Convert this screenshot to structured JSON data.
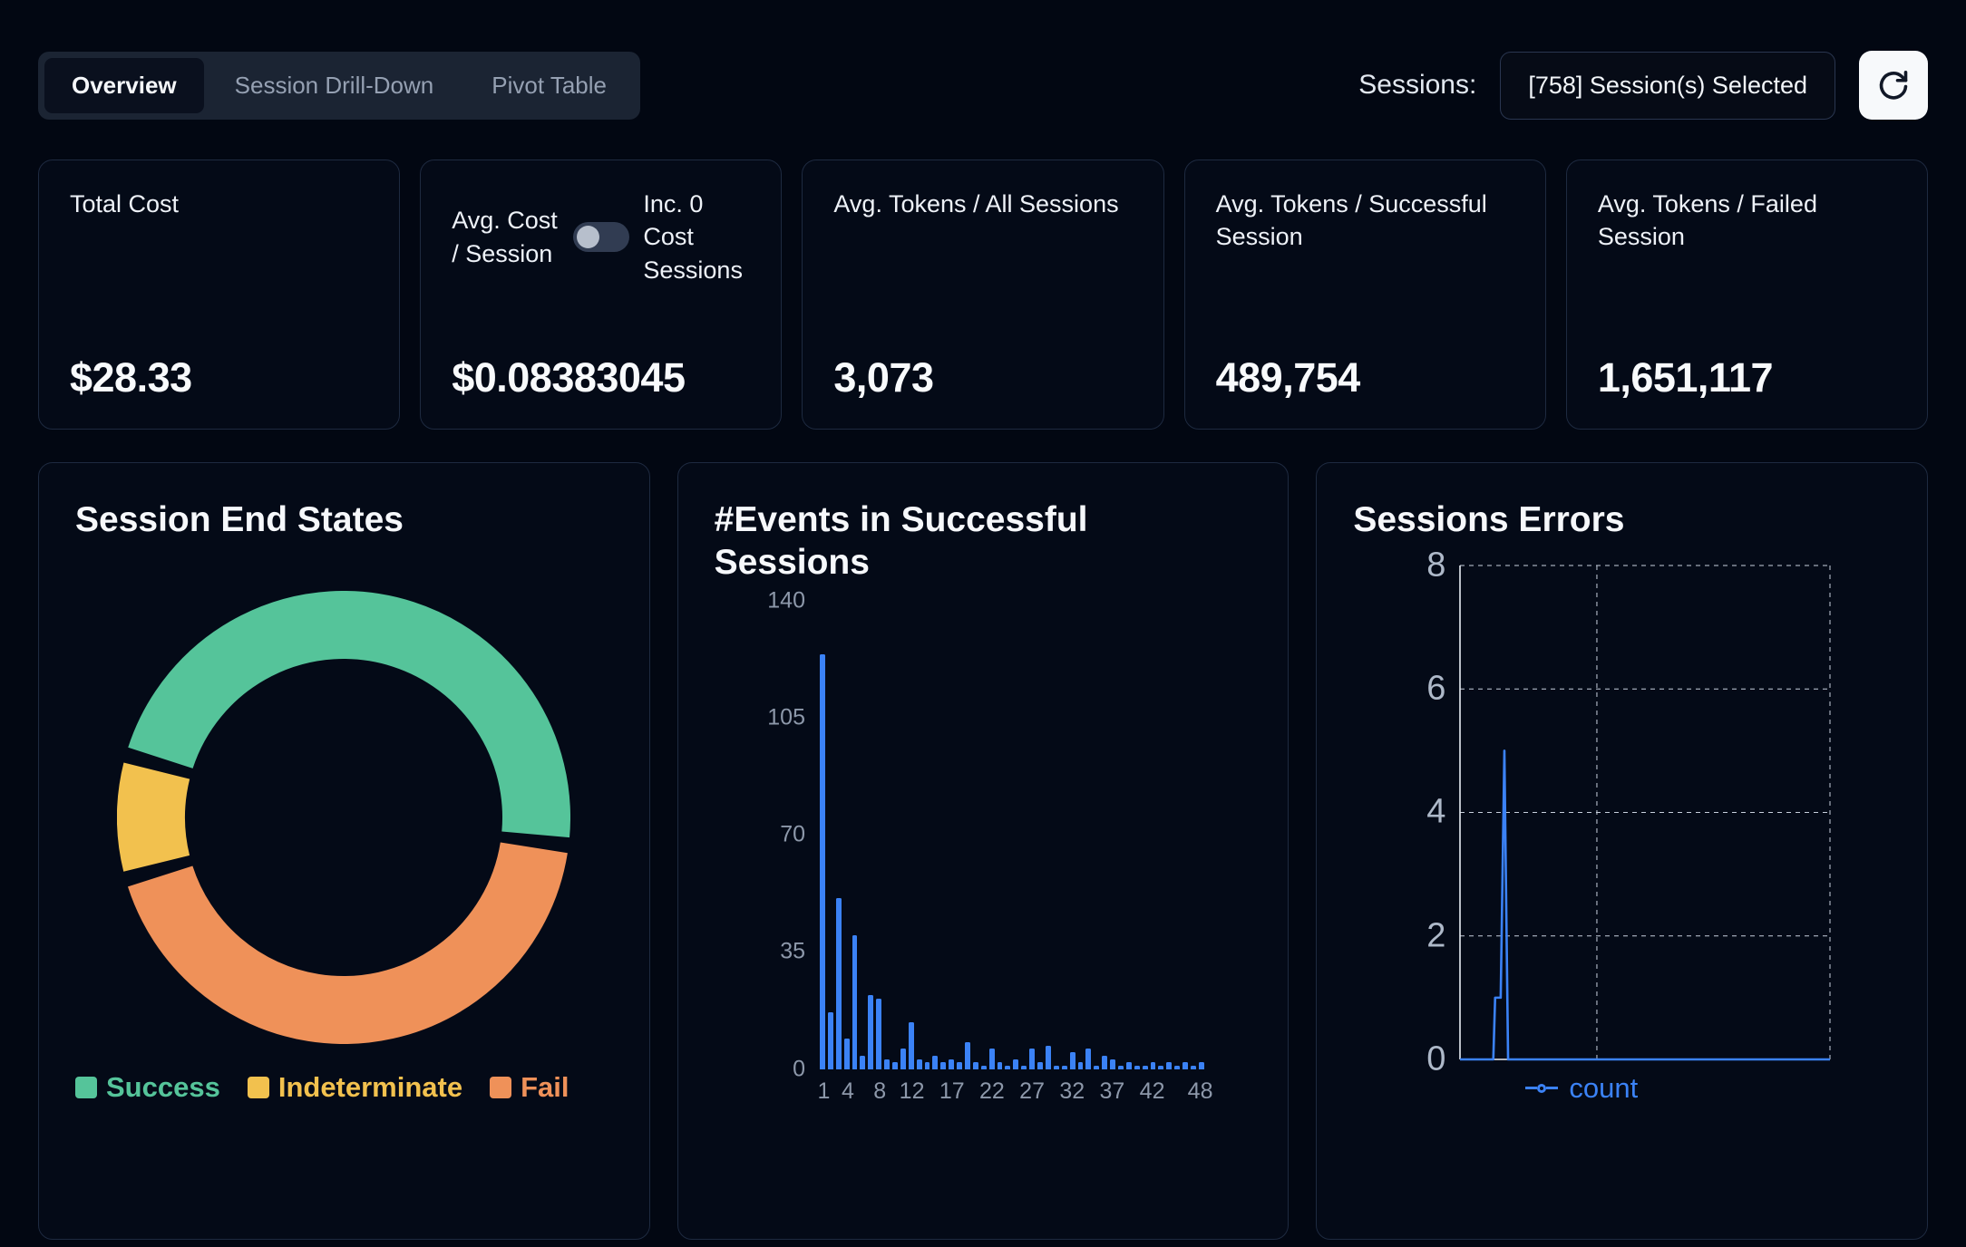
{
  "tabs": [
    {
      "label": "Overview",
      "active": true
    },
    {
      "label": "Session Drill-Down",
      "active": false
    },
    {
      "label": "Pivot Table",
      "active": false
    }
  ],
  "header": {
    "sessions_label": "Sessions:",
    "sessions_selected": "[758] Session(s) Selected"
  },
  "stats": [
    {
      "label": "Total Cost",
      "value": "$28.33"
    },
    {
      "label": "Avg. Cost / Session",
      "toggle_label": "Inc. 0 Cost Sessions",
      "toggle_on": false,
      "value": "$0.08383045"
    },
    {
      "label": "Avg. Tokens / All Sessions",
      "value": "3,073"
    },
    {
      "label": "Avg. Tokens / Successful Session",
      "value": "489,754"
    },
    {
      "label": "Avg. Tokens / Failed Session",
      "value": "1,651,117"
    }
  ],
  "chart_data": [
    {
      "type": "pie",
      "variant": "donut",
      "title": "Session End States",
      "labels": [
        "Success",
        "Indeterminate",
        "Fail"
      ],
      "values": [
        48,
        8,
        44
      ],
      "values_unit": "percent_estimate",
      "colors": [
        "#55c49a",
        "#f2c14e",
        "#ef9159"
      ],
      "draw_order": [
        "Success",
        "Fail",
        "Indeterminate"
      ],
      "start_angle_deg": 288,
      "pad_angle_deg": 4,
      "legend_position": "bottom"
    },
    {
      "type": "bar",
      "title": "#Events in Successful Sessions",
      "x_start": 1,
      "values": [
        124,
        17,
        51,
        9,
        40,
        4,
        22,
        21,
        3,
        2,
        6,
        14,
        3,
        2,
        4,
        2,
        3,
        2,
        8,
        2,
        1,
        6,
        2,
        1,
        3,
        1,
        6,
        2,
        7,
        1,
        1,
        5,
        2,
        6,
        1,
        4,
        3,
        1,
        2,
        1,
        1,
        2,
        1,
        2,
        1,
        2,
        1,
        2
      ],
      "xticks": [
        1,
        4,
        8,
        12,
        17,
        22,
        27,
        32,
        37,
        42,
        48
      ],
      "yticks": [
        0,
        35,
        70,
        105,
        140
      ],
      "ylim": [
        0,
        140
      ],
      "bar_color": "#3b82f6",
      "grid": false
    },
    {
      "type": "line",
      "title": "Sessions Errors",
      "series": [
        {
          "name": "count",
          "color": "#3b82f6",
          "points": [
            [
              0,
              0
            ],
            [
              0.09,
              0
            ],
            [
              0.095,
              1
            ],
            [
              0.11,
              1
            ],
            [
              0.12,
              5
            ],
            [
              0.13,
              0
            ],
            [
              1,
              0
            ]
          ]
        }
      ],
      "yticks": [
        0,
        2,
        4,
        6,
        8
      ],
      "ylim": [
        0,
        8
      ],
      "x_gridlines": [
        0.37,
        1
      ],
      "grid": "dashed",
      "legend_position": "bottom"
    }
  ]
}
